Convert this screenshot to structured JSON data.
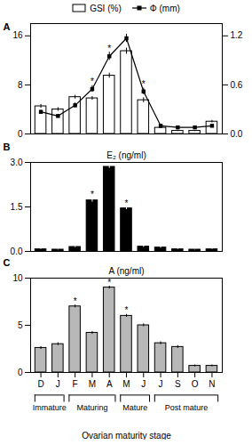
{
  "chart_data": [
    {
      "type": "bar",
      "panel_label": "A",
      "categories": [
        "D",
        "J",
        "F",
        "M",
        "A",
        "M",
        "J",
        "J",
        "S",
        "O",
        "N"
      ],
      "legend": "top",
      "tick_labels": "y",
      "annotation": "*",
      "edgecolor": "#000000",
      "series": [
        {
          "name": "GSI (%)",
          "type": "bar",
          "color": "#ffffff",
          "values": [
            4.5,
            4.0,
            6.0,
            5.8,
            9.5,
            13.5,
            5.5,
            1.0,
            0.5,
            0.5,
            2.0
          ],
          "errors": [
            0.3,
            0.3,
            0.3,
            0.3,
            0.4,
            0.5,
            0.4,
            0.1,
            0.1,
            0.1,
            0.2
          ],
          "error_color": "#000000",
          "significant": [
            false,
            false,
            false,
            true,
            false,
            false,
            true,
            false,
            false,
            false,
            false
          ]
        },
        {
          "name": "Φ (mm)",
          "type": "line",
          "axis": "y2",
          "color": "#000000",
          "marker": "square",
          "values": [
            0.27,
            0.22,
            0.35,
            0.55,
            0.95,
            1.17,
            0.52,
            0.1,
            0.08,
            0.08,
            0.1
          ],
          "errors": [
            0.02,
            0.02,
            0.03,
            0.04,
            0.05,
            0.05,
            0.04,
            0.01,
            0.01,
            0.01,
            0.01
          ],
          "error_color": "#000000",
          "significant": [
            false,
            false,
            false,
            true,
            true,
            false,
            true,
            false,
            false,
            false,
            false
          ]
        }
      ],
      "ylim": [
        0,
        18
      ],
      "yticks": [
        0,
        8,
        16
      ],
      "y2lim": [
        0,
        1.35
      ],
      "y2ticks": [
        {
          "value": 0,
          "label": "0.0"
        },
        0.6,
        1.2
      ]
    },
    {
      "type": "bar",
      "panel_label": "B",
      "title": "E₂ (ng/ml)",
      "categories": [
        "D",
        "J",
        "F",
        "M",
        "A",
        "M",
        "J",
        "J",
        "S",
        "O",
        "N"
      ],
      "tick_labels": "y",
      "annotation": "*",
      "edgecolor": "#000000",
      "color": "#000000",
      "error_color": "#ffffff",
      "values": [
        0.07,
        0.06,
        0.15,
        1.72,
        2.85,
        1.45,
        0.16,
        0.13,
        0.07,
        0.06,
        0.07
      ],
      "errors": [
        0.01,
        0.01,
        0.02,
        0.06,
        0.05,
        0.04,
        0.02,
        0.02,
        0.01,
        0.01,
        0.01
      ],
      "significant": [
        false,
        false,
        false,
        true,
        false,
        true,
        false,
        false,
        false,
        false,
        false
      ],
      "ylim": [
        0,
        3.0
      ],
      "yticks": [
        {
          "value": 0,
          "label": "0.0"
        },
        1.5,
        {
          "value": 3.0,
          "label": "3.0"
        }
      ]
    },
    {
      "type": "bar",
      "panel_label": "C",
      "title": "A (ng/ml)",
      "categories": [
        "D",
        "J",
        "F",
        "M",
        "A",
        "M",
        "J",
        "J",
        "S",
        "O",
        "N"
      ],
      "xlabel": "Ovarian maturity stage",
      "annotation": "*",
      "edgecolor": "#000000",
      "color": "#b8b8b8",
      "error_color": "#000000",
      "values": [
        2.6,
        3.0,
        7.0,
        4.2,
        9.0,
        6.0,
        5.0,
        3.1,
        2.7,
        0.7,
        0.7
      ],
      "errors": [
        0.15,
        0.15,
        0.15,
        0.15,
        0.15,
        0.15,
        0.15,
        0.15,
        0.15,
        0.1,
        0.1
      ],
      "significant": [
        false,
        false,
        true,
        false,
        true,
        true,
        false,
        false,
        false,
        false,
        false
      ],
      "stages": [
        {
          "label": "Immature",
          "span": [
            0,
            1
          ]
        },
        {
          "label": "Maturing",
          "span": [
            2,
            4
          ]
        },
        {
          "label": "Mature",
          "span": [
            5,
            6
          ]
        },
        {
          "label": "Post mature",
          "span": [
            7,
            10
          ]
        }
      ],
      "ylim": [
        0,
        10
      ],
      "yticks": [
        0,
        5,
        10
      ]
    }
  ]
}
